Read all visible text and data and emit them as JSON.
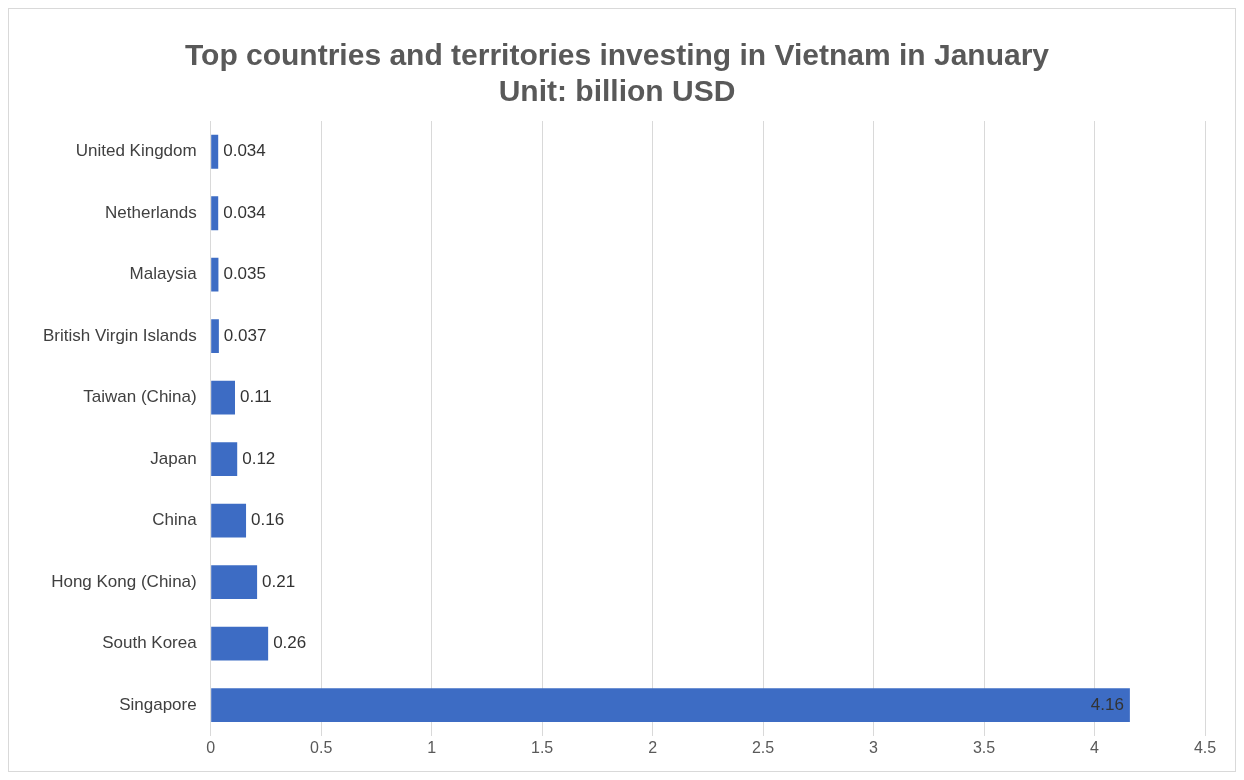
{
  "chart_data": {
    "type": "bar",
    "orientation": "horizontal",
    "title": "Top countries and territories investing in Vietnam in January",
    "subtitle": "Unit: billion USD",
    "categories": [
      "United Kingdom",
      "Netherlands",
      "Malaysia",
      "British Virgin Islands",
      "Taiwan (China)",
      "Japan",
      "China",
      "Hong Kong (China)",
      "South Korea",
      "Singapore"
    ],
    "values": [
      0.034,
      0.034,
      0.035,
      0.037,
      0.11,
      0.12,
      0.16,
      0.21,
      0.26,
      4.16
    ],
    "color": "#3d6cc4",
    "xlim": [
      0,
      4.5
    ],
    "xticks": [
      0,
      0.5,
      1,
      1.5,
      2,
      2.5,
      3,
      3.5,
      4,
      4.5
    ],
    "grid": "x",
    "legend": false,
    "data_labels": true
  }
}
